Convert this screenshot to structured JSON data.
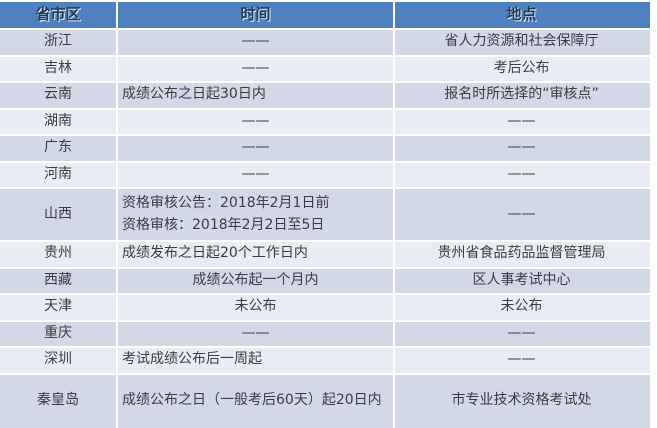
{
  "colors": {
    "page_bg": "#ffffff",
    "header_bg": "#4e81bd",
    "header_text": "#243c5e",
    "row_dark": "#d2d8e6",
    "row_light": "#e9ecf3",
    "body_text": "#3c3c42",
    "border": "#ffffff"
  },
  "table": {
    "headers": [
      "省市区",
      "时间",
      "地点"
    ],
    "rows": [
      {
        "region": "浙江",
        "time": "——",
        "time_align": "center",
        "place": "省人力资源和社会保障厅",
        "place_align": "center",
        "tall": false
      },
      {
        "region": "吉林",
        "time": "——",
        "time_align": "center",
        "place": "考后公布",
        "place_align": "center",
        "tall": false
      },
      {
        "region": "云南",
        "time": "成绩公布之日起30日内",
        "time_align": "left",
        "place": "报名时所选择的“审核点”",
        "place_align": "center",
        "tall": false
      },
      {
        "region": "湖南",
        "time": "——",
        "time_align": "center",
        "place": "——",
        "place_align": "center",
        "tall": false
      },
      {
        "region": "广东",
        "time": "——",
        "time_align": "center",
        "place": "——",
        "place_align": "center",
        "tall": false
      },
      {
        "region": "河南",
        "time": "——",
        "time_align": "center",
        "place": "——",
        "place_align": "center",
        "tall": false
      },
      {
        "region": "山西",
        "time": "资格审核公告：2018年2月1日前\n资格审核：2018年2月2日至5日",
        "time_align": "left",
        "place": "——",
        "place_align": "center",
        "tall": true
      },
      {
        "region": "贵州",
        "time": "成绩发布之日起20个工作日内",
        "time_align": "left",
        "place": "贵州省食品药品监督管理局",
        "place_align": "center",
        "tall": false
      },
      {
        "region": "西藏",
        "time": "成绩公布起一个月内",
        "time_align": "center",
        "place": "区人事考试中心",
        "place_align": "center",
        "tall": false
      },
      {
        "region": "天津",
        "time": "未公布",
        "time_align": "center",
        "place": "未公布",
        "place_align": "center",
        "tall": false
      },
      {
        "region": "重庆",
        "time": "——",
        "time_align": "center",
        "place": "——",
        "place_align": "center",
        "tall": false
      },
      {
        "region": "深圳",
        "time": "考试成绩公布后一周起",
        "time_align": "left",
        "place": "——",
        "place_align": "center",
        "tall": false
      },
      {
        "region": "秦皇岛",
        "time": "成绩公布之日（一般考后60天）起20日内",
        "time_align": "left",
        "place": "市专业技术资格考试处",
        "place_align": "center",
        "tall": true
      }
    ]
  }
}
